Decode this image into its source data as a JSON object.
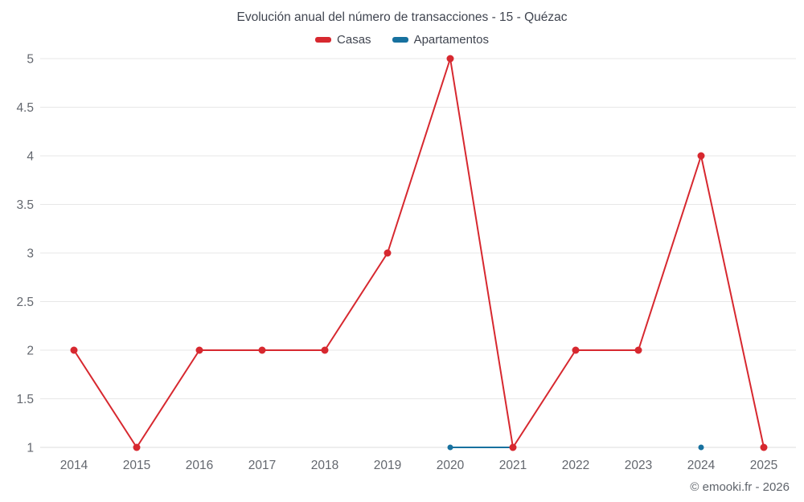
{
  "footer": "© emooki.fr - 2026",
  "chart_data": {
    "type": "line",
    "title": "Evolución anual del número de transacciones - 15 - Quézac",
    "x": [
      "2014",
      "2015",
      "2016",
      "2017",
      "2018",
      "2019",
      "2020",
      "2021",
      "2022",
      "2023",
      "2024",
      "2025"
    ],
    "series": [
      {
        "name": "Casas",
        "color": "#d7282f",
        "point_radius": 4.5,
        "values": [
          2,
          1,
          2,
          2,
          2,
          3,
          5,
          1,
          2,
          2,
          4,
          1
        ]
      },
      {
        "name": "Apartamentos",
        "color": "#17719f",
        "point_radius": 3.5,
        "values": [
          null,
          null,
          null,
          null,
          null,
          null,
          1,
          1,
          null,
          null,
          1,
          null
        ]
      }
    ],
    "xlabel": "",
    "ylabel": "",
    "ylim": [
      1,
      5
    ],
    "ytick_step": 0.5,
    "yticks": [
      "1",
      "1.5",
      "2",
      "2.5",
      "3",
      "3.5",
      "4",
      "4.5",
      "5"
    ],
    "grid": "horizontal",
    "legend_position": "top"
  }
}
